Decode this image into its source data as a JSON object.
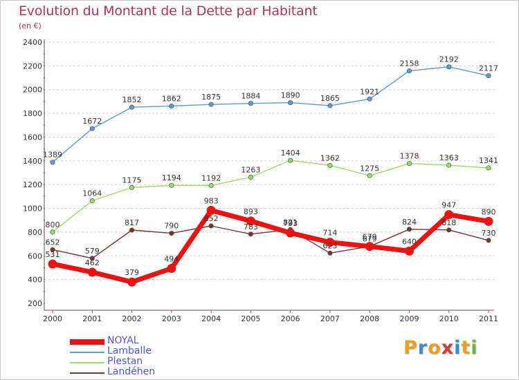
{
  "header": {
    "title": "Evolution du Montant de la Dette par Habitant",
    "subtitle": "(en €)"
  },
  "logo": {
    "text": "Proxiti",
    "letters": [
      {
        "ch": "P",
        "color": "#e8a020"
      },
      {
        "ch": "r",
        "color": "#3a8ad6"
      },
      {
        "ch": "o",
        "color": "#e8a020"
      },
      {
        "ch": "x",
        "color": "#d83a3a"
      },
      {
        "ch": "i",
        "color": "#3a8ad6"
      },
      {
        "ch": "t",
        "color": "#e8a020"
      },
      {
        "ch": "i",
        "color": "#68b83a"
      }
    ]
  },
  "chart_data": {
    "type": "line",
    "title": "Evolution du Montant de la Dette par Habitant",
    "subtitle": "(en €)",
    "xlabel": "",
    "ylabel": "",
    "x": [
      "2000",
      "2001",
      "2002",
      "2003",
      "2004",
      "2005",
      "2006",
      "2007",
      "2008",
      "2009",
      "2010",
      "2011"
    ],
    "ylim": [
      200,
      2400
    ],
    "yticks": [
      200,
      400,
      600,
      800,
      1000,
      1200,
      1400,
      1600,
      1800,
      2000,
      2200,
      2400
    ],
    "grid": "horizontal-dashed",
    "legend_position": "bottom-left",
    "series": [
      {
        "name": "NOYAL",
        "color": "#ee1111",
        "values": [
          531,
          462,
          379,
          494,
          983,
          893,
          793,
          714,
          679,
          640,
          947,
          890
        ]
      },
      {
        "name": "Lamballe",
        "color": "#5b9bd5",
        "values": [
          1389,
          1672,
          1852,
          1862,
          1875,
          1884,
          1890,
          1865,
          1921,
          2158,
          2192,
          2117
        ]
      },
      {
        "name": "Plestan",
        "color": "#99dd66",
        "values": [
          800,
          1064,
          1175,
          1194,
          1192,
          1263,
          1404,
          1362,
          1275,
          1378,
          1363,
          1341
        ]
      },
      {
        "name": "Landéhen",
        "color": "#7a3232",
        "values": [
          652,
          579,
          817,
          790,
          852,
          783,
          821,
          623,
          679,
          824,
          818,
          730
        ]
      }
    ]
  }
}
